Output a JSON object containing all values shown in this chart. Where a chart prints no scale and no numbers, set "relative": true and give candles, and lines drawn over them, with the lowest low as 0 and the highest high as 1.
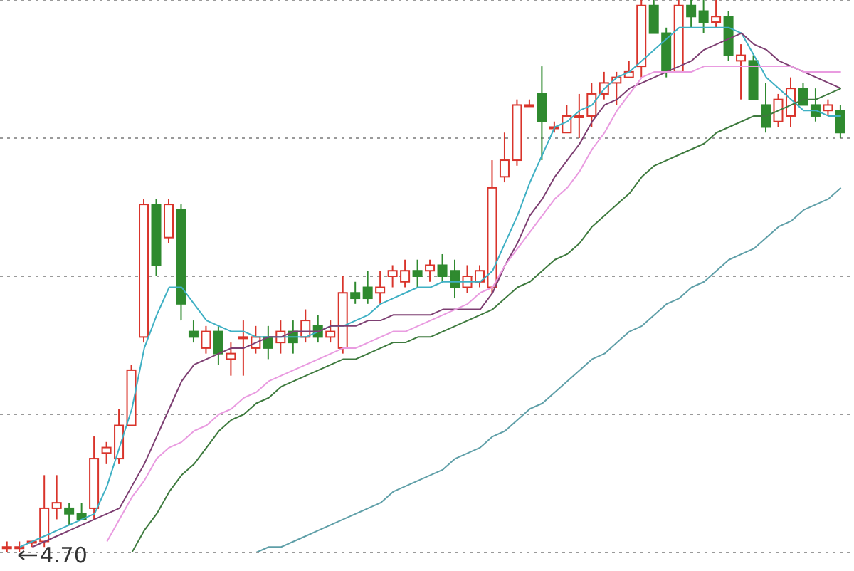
{
  "chart_data": {
    "type": "candlestick",
    "relative": true,
    "grid": "y",
    "categories": [
      null,
      null,
      null,
      null,
      null,
      null,
      null,
      null,
      null,
      null,
      null,
      null,
      null,
      null,
      null,
      null,
      null,
      null,
      null,
      null,
      null,
      null,
      null,
      null,
      null,
      null,
      null,
      null,
      null,
      null,
      null,
      null,
      null,
      null,
      null,
      null,
      null,
      null,
      null,
      null,
      null,
      null,
      null,
      null,
      null,
      null,
      null,
      null,
      null,
      null,
      null,
      null,
      null,
      null,
      null,
      null,
      null,
      null,
      null,
      null,
      null,
      null,
      null,
      null,
      null,
      null,
      null,
      null
    ],
    "ohlc": [
      [
        0.01,
        0.02,
        0.0,
        0.01
      ],
      [
        0.01,
        0.02,
        0,
        0.01
      ],
      [
        0.02,
        0.02,
        0.01,
        0.02
      ],
      [
        0.02,
        0.14,
        0.01,
        0.08
      ],
      [
        0.08,
        0.14,
        0.06,
        0.09
      ],
      [
        0.08,
        0.09,
        0.05,
        0.07
      ],
      [
        0.07,
        0.09,
        0.06,
        0.06
      ],
      [
        0.08,
        0.21,
        0.06,
        0.17
      ],
      [
        0.18,
        0.2,
        0.16,
        0.19
      ],
      [
        0.17,
        0.26,
        0.16,
        0.23
      ],
      [
        0.23,
        0.34,
        0.23,
        0.33
      ],
      [
        0.39,
        0.64,
        0.38,
        0.63
      ],
      [
        0.63,
        0.64,
        0.5,
        0.52
      ],
      [
        0.57,
        0.64,
        0.56,
        0.63
      ],
      [
        0.62,
        0.63,
        0.42,
        0.45
      ],
      [
        0.4,
        0.42,
        0.38,
        0.39
      ],
      [
        0.37,
        0.41,
        0.36,
        0.4
      ],
      [
        0.4,
        0.41,
        0.34,
        0.36
      ],
      [
        0.35,
        0.38,
        0.32,
        0.36
      ],
      [
        0.39,
        0.42,
        0.32,
        0.39
      ],
      [
        0.37,
        0.41,
        0.36,
        0.39
      ],
      [
        0.39,
        0.41,
        0.35,
        0.37
      ],
      [
        0.38,
        0.42,
        0.36,
        0.4
      ],
      [
        0.4,
        0.42,
        0.36,
        0.38
      ],
      [
        0.39,
        0.44,
        0.38,
        0.42
      ],
      [
        0.41,
        0.43,
        0.38,
        0.39
      ],
      [
        0.39,
        0.42,
        0.38,
        0.4
      ],
      [
        0.37,
        0.5,
        0.36,
        0.47
      ],
      [
        0.47,
        0.49,
        0.45,
        0.46
      ],
      [
        0.48,
        0.51,
        0.45,
        0.46
      ],
      [
        0.47,
        0.51,
        0.45,
        0.48
      ],
      [
        0.5,
        0.52,
        0.48,
        0.51
      ],
      [
        0.49,
        0.53,
        0.48,
        0.51
      ],
      [
        0.51,
        0.53,
        0.48,
        0.5
      ],
      [
        0.51,
        0.53,
        0.49,
        0.52
      ],
      [
        0.52,
        0.54,
        0.49,
        0.5
      ],
      [
        0.51,
        0.53,
        0.46,
        0.48
      ],
      [
        0.48,
        0.52,
        0.47,
        0.5
      ],
      [
        0.49,
        0.52,
        0.48,
        0.51
      ],
      [
        0.48,
        0.71,
        0.47,
        0.66
      ],
      [
        0.68,
        0.76,
        0.67,
        0.71
      ],
      [
        0.71,
        0.82,
        0.7,
        0.81
      ],
      [
        0.81,
        0.82,
        0.81,
        0.81
      ],
      [
        0.83,
        0.88,
        0.71,
        0.78
      ],
      [
        0.77,
        0.78,
        0.76,
        0.77
      ],
      [
        0.76,
        0.81,
        0.76,
        0.79
      ],
      [
        0.79,
        0.83,
        0.75,
        0.79
      ],
      [
        0.79,
        0.85,
        0.77,
        0.83
      ],
      [
        0.83,
        0.87,
        0.82,
        0.85
      ],
      [
        0.85,
        0.87,
        0.81,
        0.86
      ],
      [
        0.86,
        0.89,
        0.86,
        0.87
      ],
      [
        0.88,
        1,
        0.86,
        0.99
      ],
      [
        0.99,
        1,
        0.94,
        0.94
      ],
      [
        0.94,
        0.95,
        0.86,
        0.87
      ],
      [
        0.87,
        1,
        0.87,
        0.99
      ],
      [
        0.99,
        1,
        0.95,
        0.97
      ],
      [
        0.98,
        1,
        0.94,
        0.96
      ],
      [
        0.96,
        1,
        0.95,
        0.97
      ],
      [
        0.97,
        0.98,
        0.89,
        0.9
      ],
      [
        0.89,
        0.92,
        0.82,
        0.9
      ],
      [
        0.89,
        0.9,
        0.82,
        0.82
      ],
      [
        0.81,
        0.85,
        0.76,
        0.77
      ],
      [
        0.78,
        0.83,
        0.77,
        0.82
      ],
      [
        0.79,
        0.86,
        0.77,
        0.84
      ],
      [
        0.84,
        0.85,
        0.81,
        0.81
      ],
      [
        0.81,
        0.84,
        0.78,
        0.79
      ],
      [
        0.8,
        0.82,
        0.79,
        0.81
      ],
      [
        0.8,
        0.81,
        0.75,
        0.76
      ]
    ],
    "colors": [
      "#d9342b",
      "#d9342b",
      "#d9342b",
      "#d9342b",
      "#d9342b",
      "#2f8a2f",
      "#2f8a2f",
      "#d9342b",
      "#d9342b",
      "#d9342b",
      "#d9342b",
      "#d9342b",
      "#2f8a2f",
      "#d9342b",
      "#2f8a2f",
      "#2f8a2f",
      "#d9342b",
      "#2f8a2f",
      "#d9342b",
      "#d9342b",
      "#d9342b",
      "#2f8a2f",
      "#d9342b",
      "#2f8a2f",
      "#d9342b",
      "#2f8a2f",
      "#d9342b",
      "#d9342b",
      "#2f8a2f",
      "#2f8a2f",
      "#d9342b",
      "#d9342b",
      "#d9342b",
      "#2f8a2f",
      "#d9342b",
      "#2f8a2f",
      "#2f8a2f",
      "#d9342b",
      "#d9342b",
      "#d9342b",
      "#d9342b",
      "#d9342b",
      "#d9342b",
      "#2f8a2f",
      "#d9342b",
      "#d9342b",
      "#d9342b",
      "#d9342b",
      "#d9342b",
      "#d9342b",
      "#d9342b",
      "#d9342b",
      "#2f8a2f",
      "#2f8a2f",
      "#d9342b",
      "#2f8a2f",
      "#2f8a2f",
      "#d9342b",
      "#2f8a2f",
      "#d9342b",
      "#2f8a2f",
      "#2f8a2f",
      "#d9342b",
      "#d9342b",
      "#2f8a2f",
      "#2f8a2f",
      "#d9342b",
      "#2f8a2f"
    ],
    "series": [
      {
        "type": "line",
        "color": "#3fb0c4",
        "values": [
          null,
          0.01,
          0.02,
          0.03,
          0.04,
          0.05,
          0.06,
          0.07,
          0.12,
          0.19,
          0.26,
          0.37,
          0.43,
          0.48,
          0.48,
          0.45,
          0.42,
          0.41,
          0.4,
          0.4,
          0.39,
          0.39,
          0.39,
          0.39,
          0.39,
          0.4,
          0.41,
          0.41,
          0.42,
          0.43,
          0.45,
          0.46,
          0.47,
          0.48,
          0.48,
          0.49,
          0.49,
          0.49,
          0.49,
          0.51,
          0.56,
          0.61,
          0.67,
          0.72,
          0.77,
          0.78,
          0.8,
          0.81,
          0.84,
          0.86,
          0.87,
          0.89,
          0.91,
          0.93,
          0.95,
          0.95,
          0.95,
          0.95,
          0.95,
          0.94,
          0.9,
          0.86,
          0.84,
          0.82,
          0.8,
          0.8,
          0.79,
          0.79
        ]
      },
      {
        "type": "line",
        "color": "#7d3f72",
        "values": [
          null,
          null,
          0.01,
          0.02,
          0.03,
          0.04,
          0.05,
          0.06,
          0.07,
          0.08,
          0.12,
          0.16,
          0.21,
          0.26,
          0.31,
          0.34,
          0.35,
          0.36,
          0.37,
          0.37,
          0.38,
          0.39,
          0.39,
          0.4,
          0.4,
          0.4,
          0.41,
          0.41,
          0.41,
          0.42,
          0.42,
          0.43,
          0.43,
          0.43,
          0.43,
          0.44,
          0.44,
          0.44,
          0.44,
          0.47,
          0.52,
          0.56,
          0.61,
          0.64,
          0.68,
          0.71,
          0.74,
          0.78,
          0.81,
          0.82,
          0.84,
          0.85,
          0.86,
          0.87,
          0.88,
          0.89,
          0.91,
          0.92,
          0.93,
          0.94,
          0.92,
          0.91,
          0.89,
          0.88,
          0.87,
          0.86,
          0.85,
          0.84
        ]
      },
      {
        "type": "line",
        "color": "#e99be0",
        "values": [
          null,
          null,
          null,
          null,
          null,
          null,
          null,
          null,
          0.02,
          0.06,
          0.1,
          0.13,
          0.17,
          0.19,
          0.2,
          0.22,
          0.23,
          0.25,
          0.26,
          0.28,
          0.29,
          0.31,
          0.32,
          0.33,
          0.34,
          0.35,
          0.36,
          0.37,
          0.37,
          0.38,
          0.39,
          0.4,
          0.4,
          0.41,
          0.42,
          0.43,
          0.44,
          0.45,
          0.47,
          0.48,
          0.52,
          0.55,
          0.58,
          0.61,
          0.64,
          0.66,
          0.69,
          0.73,
          0.76,
          0.8,
          0.83,
          0.86,
          0.87,
          0.87,
          0.87,
          0.87,
          0.88,
          0.88,
          0.88,
          0.88,
          0.88,
          0.88,
          0.88,
          0.88,
          0.87,
          0.87,
          0.87,
          0.87
        ]
      },
      {
        "type": "line",
        "color": "#3e7a3e",
        "values": [
          null,
          null,
          null,
          null,
          null,
          null,
          null,
          null,
          null,
          null,
          0.0,
          0.04,
          0.07,
          0.11,
          0.14,
          0.16,
          0.19,
          0.22,
          0.24,
          0.25,
          0.27,
          0.28,
          0.3,
          0.31,
          0.32,
          0.33,
          0.34,
          0.35,
          0.35,
          0.36,
          0.37,
          0.38,
          0.38,
          0.39,
          0.39,
          0.4,
          0.41,
          0.42,
          0.43,
          0.44,
          0.46,
          0.48,
          0.49,
          0.51,
          0.53,
          0.54,
          0.56,
          0.59,
          0.61,
          0.63,
          0.65,
          0.68,
          0.7,
          0.71,
          0.72,
          0.73,
          0.74,
          0.76,
          0.77,
          0.78,
          0.79,
          0.79,
          0.8,
          0.81,
          0.82,
          0.82,
          0.83,
          0.84
        ]
      },
      {
        "type": "line",
        "color": "#5f9fa8",
        "values": [
          null,
          null,
          null,
          null,
          null,
          null,
          null,
          null,
          null,
          null,
          null,
          null,
          null,
          null,
          null,
          null,
          null,
          null,
          null,
          0.0,
          0.0,
          0.01,
          0.01,
          0.02,
          0.03,
          0.04,
          0.05,
          0.06,
          0.07,
          0.08,
          0.09,
          0.11,
          0.12,
          0.13,
          0.14,
          0.15,
          0.17,
          0.18,
          0.19,
          0.21,
          0.22,
          0.24,
          0.26,
          0.27,
          0.29,
          0.31,
          0.33,
          0.35,
          0.36,
          0.38,
          0.4,
          0.41,
          0.43,
          0.45,
          0.46,
          0.48,
          0.49,
          0.51,
          0.53,
          0.54,
          0.55,
          0.57,
          0.59,
          0.6,
          0.62,
          0.63,
          0.64,
          0.66
        ]
      }
    ],
    "annotations": [
      "4.70"
    ]
  }
}
